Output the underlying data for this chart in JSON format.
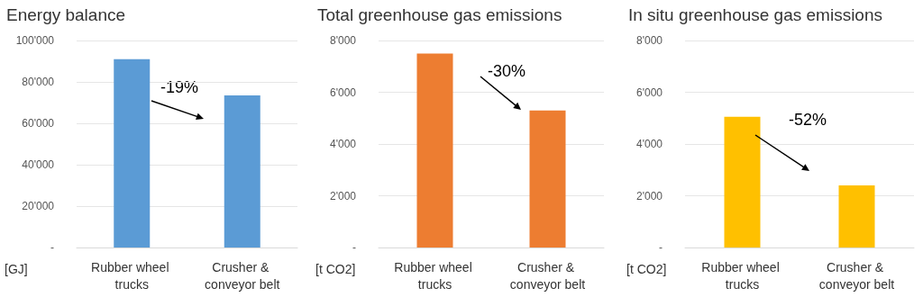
{
  "chart_data": [
    {
      "type": "bar",
      "title": "Energy balance",
      "ylabel": "[GJ]",
      "categories": [
        "Rubber wheel trucks",
        "Crusher & conveyor belt"
      ],
      "values": [
        91000,
        73500
      ],
      "color": "#5b9bd5",
      "ylim": [
        0,
        100000
      ],
      "yticks": [
        {
          "value": 0,
          "label": "-"
        },
        {
          "value": 20000,
          "label": "20'000"
        },
        {
          "value": 40000,
          "label": "40'000"
        },
        {
          "value": 60000,
          "label": "60'000"
        },
        {
          "value": 80000,
          "label": "80'000"
        },
        {
          "value": 100000,
          "label": "100'000"
        }
      ],
      "grid": "y",
      "annotations": [
        "-19%"
      ]
    },
    {
      "type": "bar",
      "title": "Total greenhouse gas emissions",
      "ylabel": "[t CO2]",
      "categories": [
        "Rubber wheel trucks",
        "Crusher & conveyor belt"
      ],
      "values": [
        7500,
        5300
      ],
      "color": "#ed7d31",
      "ylim": [
        0,
        8000
      ],
      "yticks": [
        {
          "value": 0,
          "label": "-"
        },
        {
          "value": 2000,
          "label": "2'000"
        },
        {
          "value": 4000,
          "label": "4'000"
        },
        {
          "value": 6000,
          "label": "6'000"
        },
        {
          "value": 8000,
          "label": "8'000"
        }
      ],
      "grid": "y",
      "annotations": [
        "-30%"
      ]
    },
    {
      "type": "bar",
      "title": "In situ greenhouse gas emissions",
      "ylabel": "[t CO2]",
      "categories": [
        "Rubber wheel trucks",
        "Crusher & conveyor belt"
      ],
      "values": [
        5050,
        2400
      ],
      "color": "#ffc000",
      "ylim": [
        0,
        8000
      ],
      "yticks": [
        {
          "value": 0,
          "label": "-"
        },
        {
          "value": 2000,
          "label": "2'000"
        },
        {
          "value": 4000,
          "label": "4'000"
        },
        {
          "value": 6000,
          "label": "6'000"
        },
        {
          "value": 8000,
          "label": "8'000"
        }
      ],
      "grid": "y",
      "annotations": [
        "-52%"
      ]
    }
  ]
}
